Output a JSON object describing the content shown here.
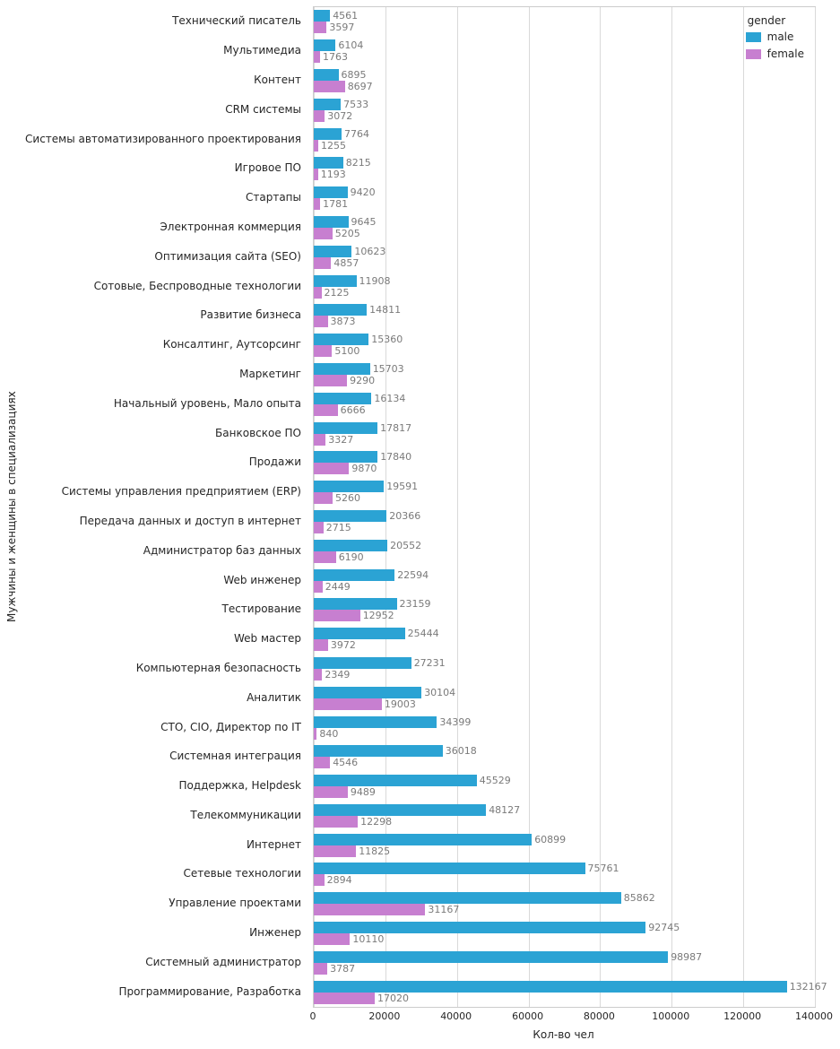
{
  "chart_data": {
    "type": "bar",
    "orientation": "horizontal",
    "xlabel": "Кол-во чел",
    "ylabel": "Мужчины и женщины в специализациях",
    "xlim": [
      0,
      140000
    ],
    "xticks": [
      0,
      20000,
      40000,
      60000,
      80000,
      100000,
      120000,
      140000
    ],
    "grid": true,
    "legend": {
      "title": "gender",
      "position": "top-right"
    },
    "categories": [
      "Технический писатель",
      "Мультимедиа",
      "Контент",
      "CRM системы",
      "Системы автоматизированного проектирования",
      "Игровое ПО",
      "Стартапы",
      "Электронная коммерция",
      "Оптимизация сайта (SEO)",
      "Сотовые, Беспроводные технологии",
      "Развитие бизнеса",
      "Консалтинг, Аутсорсинг",
      "Маркетинг",
      "Начальный уровень, Мало опыта",
      "Банковское ПО",
      "Продажи",
      "Системы управления предприятием (ERP)",
      "Передача данных и доступ в интернет",
      "Администратор баз данных",
      "Web инженер",
      "Тестирование",
      "Web мастер",
      "Компьютерная безопасность",
      "Аналитик",
      "CTO, CIO, Директор по IT",
      "Системная интеграция",
      "Поддержка, Helpdesk",
      "Телекоммуникации",
      "Интернет",
      "Сетевые технологии",
      "Управление проектами",
      "Инженер",
      "Системный администратор",
      "Программирование, Разработка"
    ],
    "series": [
      {
        "name": "male",
        "color": "#2ba3d4",
        "values": [
          4561,
          6104,
          6895,
          7533,
          7764,
          8215,
          9420,
          9645,
          10623,
          11908,
          14811,
          15360,
          15703,
          16134,
          17817,
          17840,
          19591,
          20366,
          20552,
          22594,
          23159,
          25444,
          27231,
          30104,
          34399,
          36018,
          45529,
          48127,
          60899,
          75761,
          85862,
          92745,
          98987,
          132167
        ]
      },
      {
        "name": "female",
        "color": "#c77fd0",
        "values": [
          3597,
          1763,
          8697,
          3072,
          1255,
          1193,
          1781,
          5205,
          4857,
          2125,
          3873,
          5100,
          9290,
          6666,
          3327,
          9870,
          5260,
          2715,
          6190,
          2449,
          12952,
          3972,
          2349,
          19003,
          840,
          4546,
          9489,
          12298,
          11825,
          2894,
          31167,
          10110,
          3787,
          17020
        ]
      }
    ]
  }
}
